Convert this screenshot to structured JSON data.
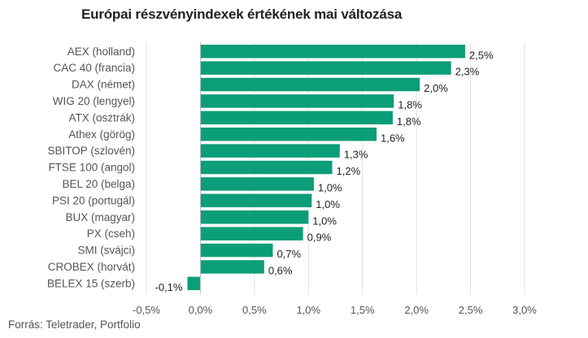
{
  "chart_data": {
    "type": "bar",
    "orientation": "horizontal",
    "title": "Európai részvényindexek értékének mai változása",
    "source": "Forrás: Teletrader, Portfolio",
    "categories": [
      "AEX (holland)",
      "CAC 40 (francia)",
      "DAX (német)",
      "WIG 20 (lengyel)",
      "ATX (osztrák)",
      "Athex (görög)",
      "SBITOP (szlovén)",
      "FTSE 100 (angol)",
      "BEL 20 (belga)",
      "PSI 20 (portugál)",
      "BUX (magyar)",
      "PX (cseh)",
      "SMI (svájci)",
      "CROBEX (horvát)",
      "BELEX 15 (szerb)"
    ],
    "values": [
      2.45,
      2.32,
      2.03,
      1.79,
      1.78,
      1.63,
      1.29,
      1.22,
      1.05,
      1.03,
      1.0,
      0.95,
      0.67,
      0.59,
      -0.12
    ],
    "value_labels": [
      "2,5%",
      "2,3%",
      "2,0%",
      "1,8%",
      "1,8%",
      "1,6%",
      "1,3%",
      "1,2%",
      "1,0%",
      "1,0%",
      "1,0%",
      "0,9%",
      "0,7%",
      "0,6%",
      "-0,1%"
    ],
    "xlim": [
      -0.5,
      3.0
    ],
    "xticks": [
      -0.5,
      0.0,
      0.5,
      1.0,
      1.5,
      2.0,
      2.5,
      3.0
    ],
    "xtick_labels": [
      "-0,5%",
      "0,0%",
      "0,5%",
      "1,0%",
      "1,5%",
      "2,0%",
      "2,5%",
      "3,0%"
    ],
    "grid": "vertical",
    "legend": "none",
    "bar_color": "#0c9e78",
    "grid_color": "#e0e0e0",
    "axis_color": "#bdbdbd"
  }
}
